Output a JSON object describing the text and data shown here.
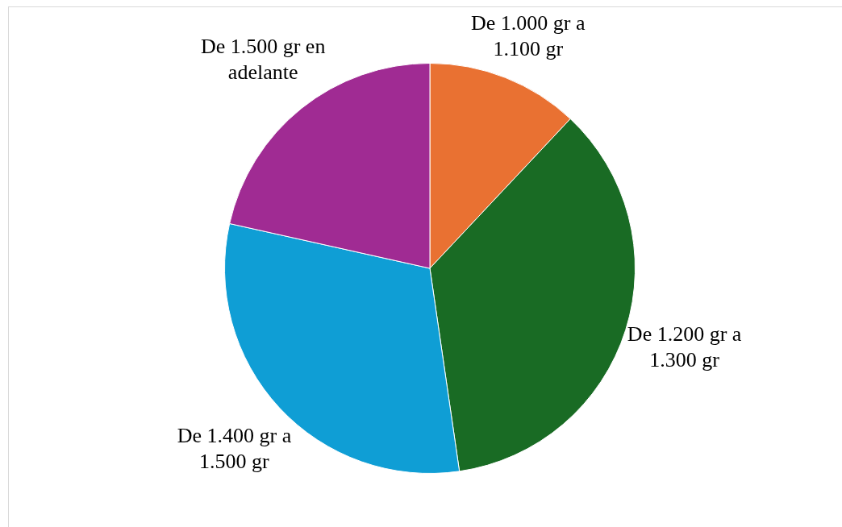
{
  "chart_data": {
    "type": "pie",
    "categories": [
      "De 1.000 gr a 1.100 gr",
      "De 1.200 gr a 1.300 gr",
      "De 1.400 gr a 1.500 gr",
      "De 1.500 gr en adelante"
    ],
    "values": [
      12,
      35.7,
      30.8,
      21.5
    ],
    "colors": [
      "#e97132",
      "#196b24",
      "#0f9ed5",
      "#a02b93"
    ],
    "legend": false
  }
}
